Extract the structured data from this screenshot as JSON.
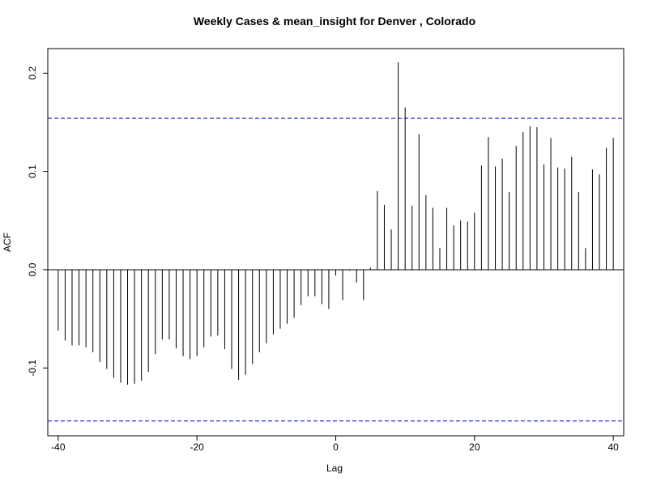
{
  "chart_data": {
    "type": "bar",
    "title": "Weekly Cases & mean_insight for Denver , Colorado",
    "xlabel": "Lag",
    "ylabel": "ACF",
    "xlim": [
      -41.5,
      41.5
    ],
    "ylim": [
      -0.169,
      0.225
    ],
    "x_ticks": [
      -40,
      -20,
      0,
      20,
      40
    ],
    "x_tick_labels": [
      "-40",
      "-20",
      "0",
      "20",
      "40"
    ],
    "y_ticks": [
      -0.1,
      0.0,
      0.1,
      0.2
    ],
    "y_tick_labels": [
      "-0.1",
      "0.0",
      "0.1",
      "0.2"
    ],
    "confidence_band": 0.154,
    "grid": false,
    "legend": "none",
    "colors": {
      "bars": "#000000",
      "confidence": "#0000cc",
      "zero_line": "#000000"
    },
    "lags": [
      -40,
      -39,
      -38,
      -37,
      -36,
      -35,
      -34,
      -33,
      -32,
      -31,
      -30,
      -29,
      -28,
      -27,
      -26,
      -25,
      -24,
      -23,
      -22,
      -21,
      -20,
      -19,
      -18,
      -17,
      -16,
      -15,
      -14,
      -13,
      -12,
      -11,
      -10,
      -9,
      -8,
      -7,
      -6,
      -5,
      -4,
      -3,
      -2,
      -1,
      0,
      1,
      2,
      3,
      4,
      5,
      6,
      7,
      8,
      9,
      10,
      11,
      12,
      13,
      14,
      15,
      16,
      17,
      18,
      19,
      20,
      21,
      22,
      23,
      24,
      25,
      26,
      27,
      28,
      29,
      30,
      31,
      32,
      33,
      34,
      35,
      36,
      37,
      38,
      39,
      40
    ],
    "values": [
      -0.062,
      -0.072,
      -0.077,
      -0.077,
      -0.079,
      -0.084,
      -0.094,
      -0.101,
      -0.11,
      -0.115,
      -0.117,
      -0.116,
      -0.113,
      -0.104,
      -0.086,
      -0.071,
      -0.071,
      -0.08,
      -0.088,
      -0.091,
      -0.088,
      -0.079,
      -0.068,
      -0.067,
      -0.081,
      -0.101,
      -0.112,
      -0.107,
      -0.096,
      -0.084,
      -0.075,
      -0.066,
      -0.06,
      -0.055,
      -0.049,
      -0.036,
      -0.027,
      -0.027,
      -0.035,
      -0.04,
      -0.006,
      -0.031,
      -0.001,
      -0.013,
      -0.031,
      0.002,
      0.08,
      0.066,
      0.041,
      0.211,
      0.165,
      0.065,
      0.138,
      0.076,
      0.063,
      0.022,
      0.063,
      0.045,
      0.05,
      0.049,
      0.058,
      0.106,
      0.135,
      0.105,
      0.113,
      0.079,
      0.126,
      0.14,
      0.146,
      0.145,
      0.107,
      0.134,
      0.104,
      0.103,
      0.115,
      0.079,
      0.022,
      0.102,
      0.097,
      0.124,
      0.134
    ]
  }
}
